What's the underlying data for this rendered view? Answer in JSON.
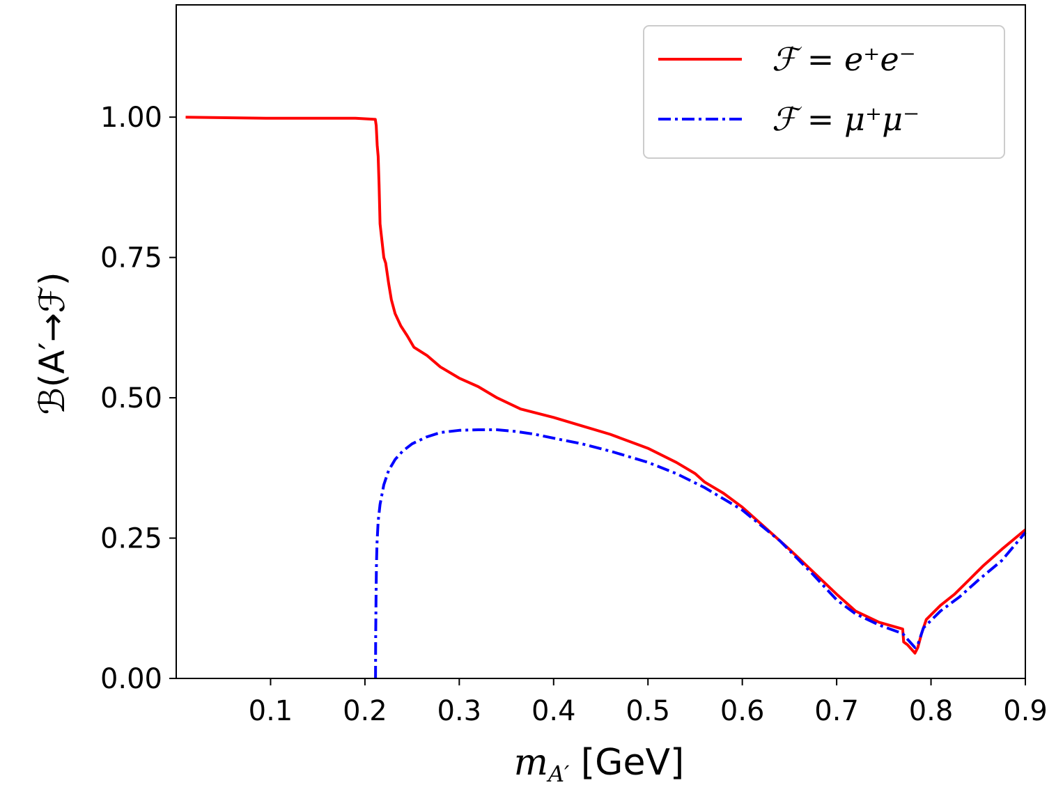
{
  "chart_data": {
    "type": "line",
    "title": "",
    "xlabel": "m_{A'} [GeV]",
    "ylabel": "B(A'→F)",
    "xlabel_parts": {
      "var": "m",
      "sub": "A′",
      "unit": " [GeV]"
    },
    "ylabel_parts": {
      "text": "ℬ(A′→ℱ)"
    },
    "xlim": [
      0.0,
      0.9
    ],
    "ylim": [
      0.0,
      1.2
    ],
    "xticks": [
      0.1,
      0.2,
      0.3,
      0.4,
      0.5,
      0.6,
      0.7,
      0.8,
      0.9
    ],
    "xtick_labels": [
      "0.1",
      "0.2",
      "0.3",
      "0.4",
      "0.5",
      "0.6",
      "0.7",
      "0.8",
      "0.9"
    ],
    "yticks": [
      0.0,
      0.25,
      0.5,
      0.75,
      1.0
    ],
    "ytick_labels": [
      "0.00",
      "0.25",
      "0.50",
      "0.75",
      "1.00"
    ],
    "legend_position": "top-right",
    "series": [
      {
        "name": "F = e+e−",
        "legend_label": "ℱ = e⁺e⁻",
        "color": "#ff0000",
        "style": "solid",
        "x": [
          0.01,
          0.1,
          0.19,
          0.211,
          0.212,
          0.213,
          0.214,
          0.215,
          0.216,
          0.218,
          0.22,
          0.222,
          0.225,
          0.228,
          0.232,
          0.238,
          0.245,
          0.252,
          0.266,
          0.28,
          0.3,
          0.32,
          0.34,
          0.365,
          0.4,
          0.43,
          0.46,
          0.5,
          0.53,
          0.55,
          0.56,
          0.58,
          0.6,
          0.62,
          0.65,
          0.675,
          0.7,
          0.72,
          0.745,
          0.77,
          0.771,
          0.775,
          0.783,
          0.786,
          0.79,
          0.795,
          0.81,
          0.825,
          0.84,
          0.855,
          0.875,
          0.9
        ],
        "y": [
          1.0,
          0.998,
          0.998,
          0.996,
          0.985,
          0.95,
          0.93,
          0.88,
          0.81,
          0.78,
          0.75,
          0.74,
          0.705,
          0.675,
          0.65,
          0.628,
          0.61,
          0.59,
          0.575,
          0.555,
          0.535,
          0.52,
          0.5,
          0.48,
          0.465,
          0.45,
          0.435,
          0.41,
          0.385,
          0.365,
          0.35,
          0.33,
          0.305,
          0.275,
          0.23,
          0.19,
          0.15,
          0.12,
          0.1,
          0.088,
          0.065,
          0.06,
          0.045,
          0.055,
          0.08,
          0.105,
          0.13,
          0.15,
          0.175,
          0.2,
          0.23,
          0.265
        ]
      },
      {
        "name": "F = μ+μ−",
        "legend_label": "ℱ = μ⁺μ⁻",
        "color": "#0000ff",
        "style": "dashdot",
        "x": [
          0.2112,
          0.2114,
          0.2118,
          0.2122,
          0.2128,
          0.214,
          0.216,
          0.22,
          0.225,
          0.232,
          0.24,
          0.25,
          0.265,
          0.28,
          0.3,
          0.32,
          0.34,
          0.36,
          0.38,
          0.4,
          0.43,
          0.46,
          0.5,
          0.53,
          0.56,
          0.6,
          0.64,
          0.675,
          0.7,
          0.72,
          0.745,
          0.77,
          0.775,
          0.783,
          0.786,
          0.792,
          0.81,
          0.83,
          0.85,
          0.875,
          0.9
        ],
        "y": [
          0.0,
          0.07,
          0.15,
          0.2,
          0.24,
          0.28,
          0.31,
          0.345,
          0.37,
          0.39,
          0.405,
          0.418,
          0.43,
          0.438,
          0.442,
          0.443,
          0.443,
          0.44,
          0.435,
          0.428,
          0.418,
          0.405,
          0.385,
          0.365,
          0.34,
          0.3,
          0.245,
          0.185,
          0.14,
          0.115,
          0.095,
          0.08,
          0.07,
          0.055,
          0.06,
          0.09,
          0.12,
          0.145,
          0.175,
          0.21,
          0.26
        ]
      }
    ]
  }
}
